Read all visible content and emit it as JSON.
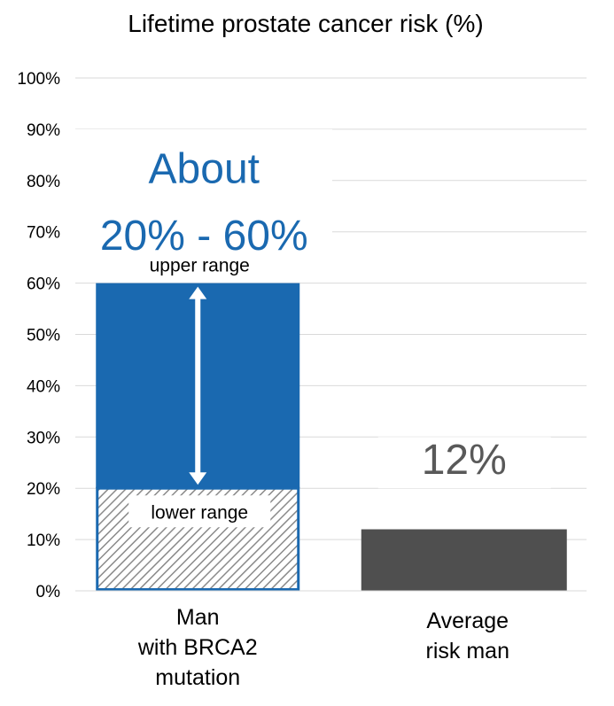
{
  "chart_data": {
    "type": "bar",
    "title": "Lifetime prostate cancer risk (%)",
    "ylim": [
      0,
      100
    ],
    "yticks": [
      0,
      10,
      20,
      30,
      40,
      50,
      60,
      70,
      80,
      90,
      100
    ],
    "ytick_labels": [
      "0%",
      "10%",
      "20%",
      "30%",
      "40%",
      "50%",
      "60%",
      "70%",
      "80%",
      "90%",
      "100%"
    ],
    "grid": true,
    "categories": [
      [
        "Man",
        "with BRCA2",
        "mutation"
      ],
      [
        "Average",
        "risk man"
      ]
    ],
    "bars": [
      {
        "category_index": 0,
        "low": 20,
        "high": 60,
        "lower_segment": [
          0,
          20
        ],
        "color": "#1a69b0",
        "hatch_color": "#8a8a8a"
      },
      {
        "category_index": 1,
        "value": 12,
        "color": "#4f4f4f"
      }
    ],
    "annotations": {
      "range_line1": "About",
      "range_line2": "20% - 60%",
      "upper_label": "upper range",
      "lower_label": "lower range",
      "average_label": "12%"
    },
    "colors": {
      "accent": "#1a69b0",
      "average": "#4f4f4f",
      "grid": "#d9d9d9",
      "text": "#000000",
      "value_text": "#595959"
    }
  }
}
